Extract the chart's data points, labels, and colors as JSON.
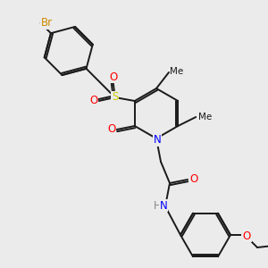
{
  "bg_color": "#ebebeb",
  "bond_color": "#1a1a1a",
  "bond_width": 1.4,
  "atom_colors": {
    "N": "#0000ff",
    "O": "#ff0000",
    "S": "#cccc00",
    "Br": "#cc8800",
    "H": "#888888",
    "C": "#1a1a1a"
  },
  "font_size": 8.5,
  "font_size_small": 7.5
}
